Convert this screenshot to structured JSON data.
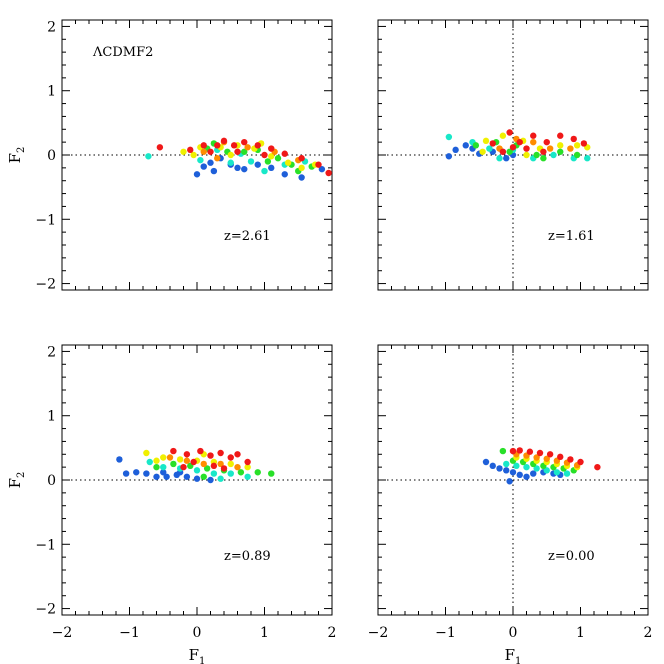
{
  "figure": {
    "model_label": "ΛCDMF2",
    "xlabel": "F",
    "xlabel_sub": "1",
    "ylabel": "F",
    "ylabel_sub": "2"
  },
  "colors": {
    "blue": "#1e5fd9",
    "cyan": "#18e8c8",
    "green": "#28e028",
    "yellow": "#f0f000",
    "orange": "#ff8c00",
    "red": "#f01818",
    "ref_line": "#000000"
  },
  "chart_data": [
    {
      "type": "scatter",
      "panel": "top-left",
      "title": "",
      "annotation": "z=2.61",
      "xlabel": "",
      "ylabel": "F2",
      "xlim": [
        -2,
        2
      ],
      "ylim": [
        -2.1,
        2.1
      ],
      "xticks": [],
      "yticks": [
        "−2",
        "−1",
        "0",
        "1",
        "2"
      ],
      "ytick_values": [
        -2,
        -1,
        0,
        1,
        2
      ],
      "reference_lines": {
        "h": 0
      },
      "series": [
        {
          "name": "blue",
          "points": [
            [
              0,
              -0.3
            ],
            [
              0.1,
              -0.18
            ],
            [
              0.2,
              -0.12
            ],
            [
              0.35,
              -0.05
            ],
            [
              0.5,
              -0.15
            ],
            [
              0.7,
              -0.22
            ],
            [
              0.9,
              -0.15
            ],
            [
              1.1,
              -0.2
            ],
            [
              1.3,
              -0.3
            ],
            [
              1.55,
              -0.35
            ],
            [
              1.85,
              -0.22
            ],
            [
              0.6,
              -0.2
            ],
            [
              0.25,
              -0.25
            ]
          ]
        },
        {
          "name": "cyan",
          "points": [
            [
              -0.72,
              -0.02
            ],
            [
              0.05,
              -0.08
            ],
            [
              0.5,
              -0.12
            ],
            [
              0.8,
              -0.1
            ],
            [
              1.0,
              -0.25
            ],
            [
              1.3,
              -0.15
            ],
            [
              1.6,
              -0.1
            ],
            [
              0.3,
              0.08
            ],
            [
              0.65,
              0.02
            ]
          ]
        },
        {
          "name": "green",
          "points": [
            [
              0.25,
              0.18
            ],
            [
              0.45,
              0.05
            ],
            [
              0.7,
              0.05
            ],
            [
              1.05,
              -0.1
            ],
            [
              1.4,
              -0.15
            ],
            [
              1.7,
              -0.18
            ],
            [
              0.15,
              0.1
            ],
            [
              0.9,
              0.08
            ],
            [
              1.2,
              -0.05
            ],
            [
              1.5,
              -0.25
            ]
          ]
        },
        {
          "name": "yellow",
          "points": [
            [
              -0.2,
              0.05
            ],
            [
              0.05,
              0.12
            ],
            [
              0.35,
              0.12
            ],
            [
              0.6,
              0.15
            ],
            [
              0.85,
              0.1
            ],
            [
              1.1,
              -0.02
            ],
            [
              1.35,
              -0.12
            ],
            [
              1.55,
              -0.2
            ],
            [
              1.75,
              -0.15
            ],
            [
              -0.05,
              0.0
            ],
            [
              0.5,
              0.0
            ],
            [
              0.95,
              0.18
            ]
          ]
        },
        {
          "name": "orange",
          "points": [
            [
              0.1,
              0.05
            ],
            [
              0.4,
              0.2
            ],
            [
              0.75,
              0.12
            ],
            [
              1.15,
              0.05
            ],
            [
              1.5,
              -0.08
            ],
            [
              0.3,
              -0.05
            ]
          ]
        },
        {
          "name": "red",
          "points": [
            [
              -0.55,
              0.12
            ],
            [
              -0.1,
              0.08
            ],
            [
              0.1,
              0.15
            ],
            [
              0.3,
              0.15
            ],
            [
              0.4,
              0.22
            ],
            [
              0.55,
              0.15
            ],
            [
              0.7,
              0.2
            ],
            [
              0.9,
              0.15
            ],
            [
              1.1,
              0.1
            ],
            [
              1.3,
              0.02
            ],
            [
              1.55,
              -0.05
            ],
            [
              1.8,
              -0.15
            ],
            [
              1.95,
              -0.28
            ],
            [
              0.2,
              0.05
            ],
            [
              0.6,
              0.05
            ],
            [
              1.0,
              0.0
            ]
          ]
        }
      ]
    },
    {
      "type": "scatter",
      "panel": "top-right",
      "title": "",
      "annotation": "z=1.61",
      "xlabel": "",
      "ylabel": "",
      "xlim": [
        -2,
        2
      ],
      "ylim": [
        -2.1,
        2.1
      ],
      "xticks": [],
      "yticks": [],
      "reference_lines": {
        "h": 0,
        "v": 0
      },
      "series": [
        {
          "name": "blue",
          "points": [
            [
              -0.95,
              -0.02
            ],
            [
              -0.85,
              0.08
            ],
            [
              -0.7,
              0.15
            ],
            [
              -0.5,
              0.02
            ],
            [
              -0.3,
              0.05
            ],
            [
              -0.15,
              0.05
            ],
            [
              0.0,
              0.0
            ],
            [
              -0.6,
              0.1
            ],
            [
              -0.1,
              -0.05
            ]
          ]
        },
        {
          "name": "cyan",
          "points": [
            [
              -0.95,
              0.28
            ],
            [
              -0.6,
              0.2
            ],
            [
              -0.35,
              0.1
            ],
            [
              0.0,
              0.08
            ],
            [
              0.3,
              -0.05
            ],
            [
              0.6,
              0.0
            ],
            [
              0.9,
              -0.05
            ],
            [
              1.1,
              -0.05
            ],
            [
              -0.2,
              -0.05
            ]
          ]
        },
        {
          "name": "green",
          "points": [
            [
              -0.55,
              0.15
            ],
            [
              -0.25,
              0.2
            ],
            [
              0.05,
              0.15
            ],
            [
              0.35,
              0.0
            ],
            [
              0.7,
              0.05
            ],
            [
              0.95,
              0.0
            ],
            [
              0.45,
              -0.05
            ],
            [
              -0.05,
              0.05
            ]
          ]
        },
        {
          "name": "yellow",
          "points": [
            [
              -0.4,
              0.22
            ],
            [
              -0.15,
              0.3
            ],
            [
              0.15,
              0.22
            ],
            [
              0.4,
              0.1
            ],
            [
              0.7,
              0.15
            ],
            [
              0.95,
              0.15
            ],
            [
              1.1,
              0.12
            ],
            [
              -0.45,
              0.05
            ],
            [
              0.2,
              0.0
            ]
          ]
        },
        {
          "name": "orange",
          "points": [
            [
              -0.2,
              0.1
            ],
            [
              0.05,
              0.25
            ],
            [
              0.3,
              0.2
            ],
            [
              0.55,
              0.1
            ],
            [
              0.85,
              0.1
            ]
          ]
        },
        {
          "name": "red",
          "points": [
            [
              -0.3,
              0.18
            ],
            [
              -0.05,
              0.35
            ],
            [
              0.1,
              0.2
            ],
            [
              0.3,
              0.3
            ],
            [
              0.5,
              0.2
            ],
            [
              0.7,
              0.3
            ],
            [
              0.9,
              0.25
            ],
            [
              1.05,
              0.18
            ],
            [
              -0.15,
              0.05
            ],
            [
              0.0,
              0.12
            ],
            [
              0.2,
              0.1
            ],
            [
              0.45,
              0.05
            ]
          ]
        }
      ]
    },
    {
      "type": "scatter",
      "panel": "bottom-left",
      "title": "",
      "annotation": "z=0.89",
      "xlabel": "F1",
      "ylabel": "F2",
      "xlim": [
        -2,
        2
      ],
      "ylim": [
        -2.1,
        2.1
      ],
      "xticks": [
        "−2",
        "−1",
        "0",
        "1",
        "2"
      ],
      "xtick_values": [
        -2,
        -1,
        0,
        1,
        2
      ],
      "yticks": [
        "−2",
        "−1",
        "0",
        "1",
        "2"
      ],
      "ytick_values": [
        -2,
        -1,
        0,
        1,
        2
      ],
      "reference_lines": {
        "h": 0
      },
      "series": [
        {
          "name": "blue",
          "points": [
            [
              -1.15,
              0.32
            ],
            [
              -1.05,
              0.1
            ],
            [
              -0.9,
              0.12
            ],
            [
              -0.75,
              0.1
            ],
            [
              -0.6,
              0.05
            ],
            [
              -0.45,
              0.05
            ],
            [
              -0.3,
              0.08
            ],
            [
              -0.15,
              0.05
            ],
            [
              0.0,
              0.02
            ],
            [
              0.2,
              0.0
            ],
            [
              -0.5,
              0.12
            ],
            [
              -0.25,
              0.12
            ]
          ]
        },
        {
          "name": "cyan",
          "points": [
            [
              -0.5,
              0.2
            ],
            [
              -0.25,
              0.18
            ],
            [
              0.0,
              0.15
            ],
            [
              0.25,
              0.1
            ],
            [
              0.5,
              0.1
            ],
            [
              0.75,
              0.05
            ],
            [
              -0.7,
              0.28
            ],
            [
              0.35,
              0.02
            ]
          ]
        },
        {
          "name": "green",
          "points": [
            [
              -0.6,
              0.2
            ],
            [
              -0.35,
              0.25
            ],
            [
              -0.1,
              0.22
            ],
            [
              0.15,
              0.18
            ],
            [
              0.4,
              0.15
            ],
            [
              0.65,
              0.12
            ],
            [
              0.9,
              0.12
            ],
            [
              1.1,
              0.1
            ],
            [
              0.1,
              0.05
            ]
          ]
        },
        {
          "name": "yellow",
          "points": [
            [
              -0.75,
              0.42
            ],
            [
              -0.5,
              0.35
            ],
            [
              -0.25,
              0.32
            ],
            [
              0.0,
              0.3
            ],
            [
              0.25,
              0.28
            ],
            [
              0.5,
              0.25
            ],
            [
              0.75,
              0.2
            ],
            [
              -0.6,
              0.3
            ],
            [
              0.1,
              0.4
            ]
          ]
        },
        {
          "name": "orange",
          "points": [
            [
              -0.4,
              0.35
            ],
            [
              -0.15,
              0.3
            ],
            [
              0.1,
              0.25
            ],
            [
              0.35,
              0.25
            ],
            [
              0.6,
              0.2
            ]
          ]
        },
        {
          "name": "red",
          "points": [
            [
              -0.35,
              0.45
            ],
            [
              -0.15,
              0.4
            ],
            [
              0.05,
              0.45
            ],
            [
              0.2,
              0.38
            ],
            [
              0.35,
              0.42
            ],
            [
              0.5,
              0.35
            ],
            [
              0.6,
              0.4
            ],
            [
              0.75,
              0.28
            ],
            [
              -0.05,
              0.28
            ],
            [
              0.25,
              0.22
            ],
            [
              0.4,
              0.18
            ],
            [
              -0.2,
              0.2
            ]
          ]
        }
      ]
    },
    {
      "type": "scatter",
      "panel": "bottom-right",
      "title": "",
      "annotation": "z=0.00",
      "xlabel": "F1",
      "ylabel": "",
      "xlim": [
        -2,
        2
      ],
      "ylim": [
        -2.1,
        2.1
      ],
      "xticks": [
        "−2",
        "−1",
        "0",
        "1",
        "2"
      ],
      "xtick_values": [
        -2,
        -1,
        0,
        1,
        2
      ],
      "yticks": [],
      "reference_lines": {
        "h": 0,
        "v": 0
      },
      "series": [
        {
          "name": "blue",
          "points": [
            [
              -0.4,
              0.28
            ],
            [
              -0.3,
              0.22
            ],
            [
              -0.2,
              0.18
            ],
            [
              -0.1,
              0.15
            ],
            [
              0.0,
              0.12
            ],
            [
              0.1,
              0.08
            ],
            [
              0.2,
              0.05
            ],
            [
              -0.05,
              -0.02
            ],
            [
              0.3,
              0.1
            ],
            [
              0.45,
              0.12
            ],
            [
              0.6,
              0.1
            ],
            [
              0.7,
              0.08
            ]
          ]
        },
        {
          "name": "cyan",
          "points": [
            [
              -0.1,
              0.25
            ],
            [
              0.05,
              0.22
            ],
            [
              0.2,
              0.2
            ],
            [
              0.35,
              0.18
            ],
            [
              0.5,
              0.15
            ],
            [
              0.65,
              0.12
            ],
            [
              0.8,
              0.1
            ]
          ]
        },
        {
          "name": "green",
          "points": [
            [
              -0.15,
              0.45
            ],
            [
              0.0,
              0.3
            ],
            [
              0.15,
              0.28
            ],
            [
              0.3,
              0.25
            ],
            [
              0.45,
              0.22
            ],
            [
              0.6,
              0.2
            ],
            [
              0.75,
              0.18
            ],
            [
              0.9,
              0.15
            ]
          ]
        },
        {
          "name": "yellow",
          "points": [
            [
              0.05,
              0.35
            ],
            [
              0.2,
              0.33
            ],
            [
              0.35,
              0.3
            ],
            [
              0.5,
              0.28
            ],
            [
              0.65,
              0.25
            ],
            [
              0.8,
              0.22
            ],
            [
              0.95,
              0.2
            ]
          ]
        },
        {
          "name": "orange",
          "points": [
            [
              0.05,
              0.4
            ],
            [
              0.2,
              0.38
            ],
            [
              0.35,
              0.35
            ],
            [
              0.5,
              0.33
            ],
            [
              0.65,
              0.3
            ],
            [
              0.8,
              0.27
            ],
            [
              0.95,
              0.23
            ]
          ]
        },
        {
          "name": "red",
          "points": [
            [
              0.0,
              0.45
            ],
            [
              0.1,
              0.46
            ],
            [
              0.25,
              0.44
            ],
            [
              0.4,
              0.42
            ],
            [
              0.55,
              0.4
            ],
            [
              0.7,
              0.36
            ],
            [
              0.85,
              0.32
            ],
            [
              1.0,
              0.28
            ],
            [
              1.25,
              0.2
            ]
          ]
        }
      ]
    }
  ]
}
